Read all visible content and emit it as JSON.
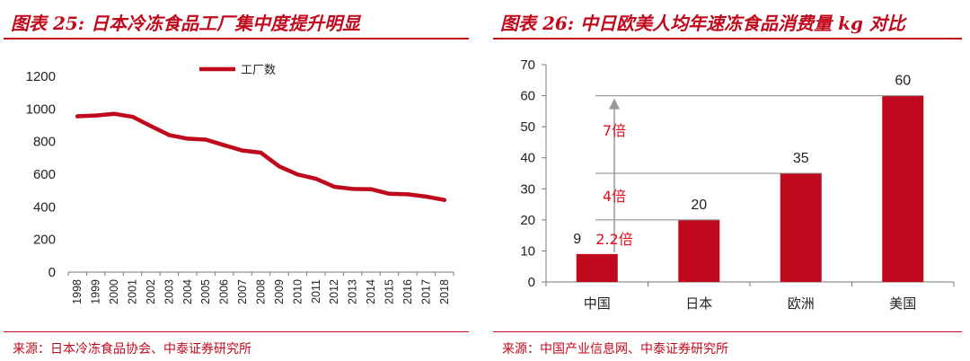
{
  "figures": [
    {
      "title": "图表 25: 日本冷冻食品工厂集中度提升明显",
      "source": "来源：日本冷冻食品协会、中泰证券研究所"
    },
    {
      "title": "图表 26: 中日欧美人均年速冻食品消费量 kg 对比",
      "source": "来源：中国产业信息网、中泰证券研究所"
    }
  ],
  "colors": {
    "accent": "#c0091c",
    "bar": "#c0091c",
    "annotation": "#e01020",
    "grid_line": "#888888"
  },
  "chart_data": [
    {
      "type": "line",
      "title": "",
      "xlabel": "",
      "ylabel": "",
      "x": [
        "1998",
        "1999",
        "2000",
        "2001",
        "2002",
        "2003",
        "2004",
        "2005",
        "2006",
        "2007",
        "2008",
        "2009",
        "2010",
        "2011",
        "2012",
        "2013",
        "2014",
        "2015",
        "2016",
        "2017",
        "2018"
      ],
      "series": [
        {
          "name": "工厂数",
          "values": [
            955,
            960,
            970,
            952,
            895,
            840,
            818,
            812,
            778,
            745,
            732,
            648,
            598,
            572,
            523,
            510,
            508,
            480,
            477,
            463,
            442
          ],
          "color": "#c0091c"
        }
      ],
      "ylim": [
        0,
        1200
      ],
      "yticks": [
        0,
        200,
        400,
        600,
        800,
        1000,
        1200
      ],
      "legend": "top-center",
      "grid": false
    },
    {
      "type": "bar",
      "title": "",
      "xlabel": "",
      "ylabel": "",
      "categories": [
        "中国",
        "日本",
        "欧洲",
        "美国"
      ],
      "values": [
        9,
        20,
        35,
        60
      ],
      "ylim": [
        0,
        70
      ],
      "yticks": [
        0,
        10,
        20,
        30,
        40,
        50,
        60,
        70
      ],
      "data_labels": [
        "9",
        "20",
        "35",
        "60"
      ],
      "annotations": [
        {
          "text": "2.2倍",
          "from_value": 9,
          "to_value": 20
        },
        {
          "text": "4倍",
          "from_value": 9,
          "to_value": 35
        },
        {
          "text": "7倍",
          "from_value": 9,
          "to_value": 60
        }
      ],
      "grid": false
    }
  ]
}
